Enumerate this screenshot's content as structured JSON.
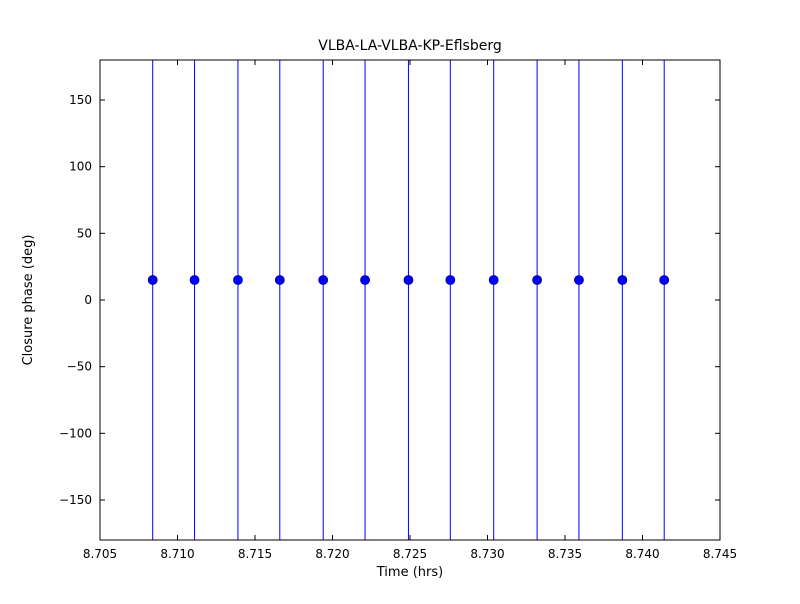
{
  "chart_data": {
    "type": "scatter",
    "title": "VLBA-LA-VLBA-KP-Eflsberg",
    "xlabel": "Time (hrs)",
    "ylabel": "Closure phase (deg)",
    "xlim": [
      8.705,
      8.745
    ],
    "ylim": [
      -180,
      180
    ],
    "xticks": [
      8.705,
      8.71,
      8.715,
      8.72,
      8.725,
      8.73,
      8.735,
      8.74,
      8.745
    ],
    "yticks": [
      -150,
      -100,
      -50,
      0,
      50,
      100,
      150
    ],
    "grid": false,
    "legend": "none",
    "series": [
      {
        "name": "closure-phase-points",
        "marker": "circle",
        "color": "#0000ff",
        "errorbar": "full-range-vertical",
        "x": [
          8.7084,
          8.7111,
          8.7139,
          8.7166,
          8.7194,
          8.7221,
          8.7249,
          8.7276,
          8.7304,
          8.7332,
          8.7359,
          8.7387,
          8.7414
        ],
        "y": [
          15,
          15,
          15,
          15,
          15,
          15,
          15,
          15,
          15,
          15,
          15,
          15,
          15
        ]
      }
    ]
  }
}
